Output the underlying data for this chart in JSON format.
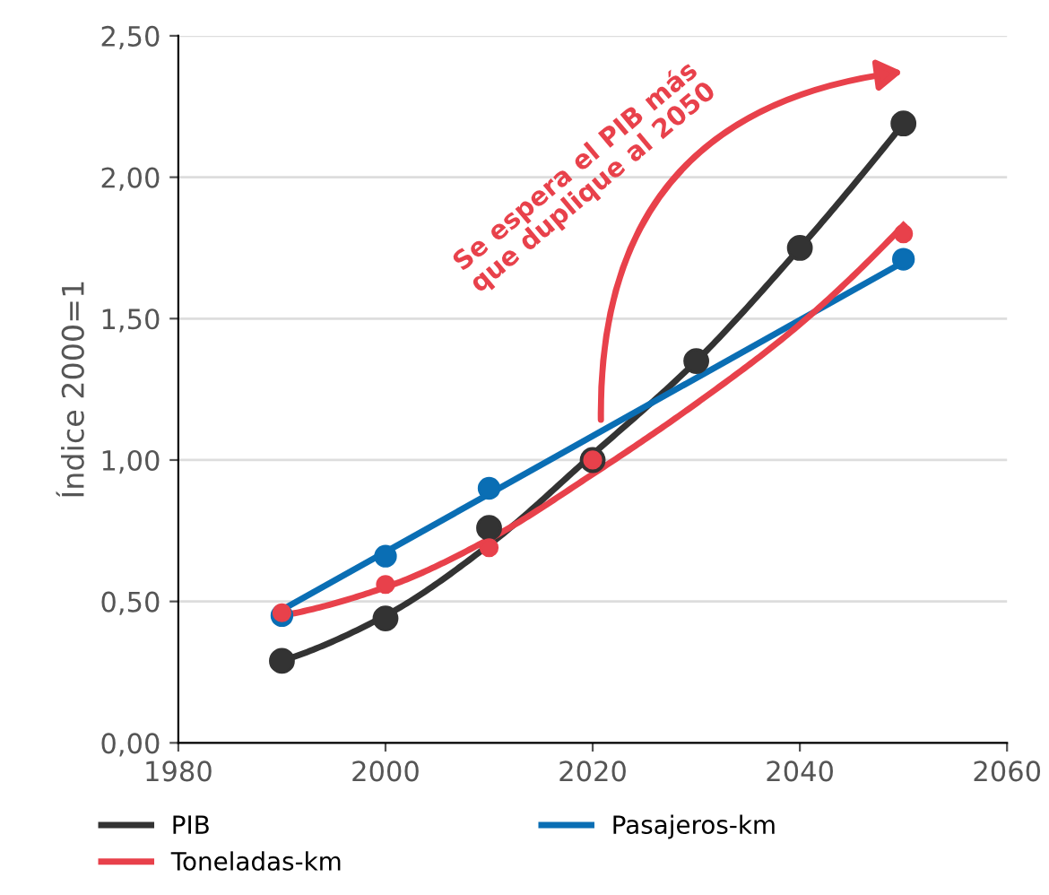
{
  "chart_data": {
    "type": "line",
    "ylabel": "Índice 2000=1",
    "xlim": [
      1980,
      2060
    ],
    "xticks": [
      1980,
      2000,
      2020,
      2040,
      2060
    ],
    "ylim": [
      0,
      2.5
    ],
    "yticks": [
      {
        "value": 0,
        "label": "0,00"
      },
      {
        "value": 0.5,
        "label": "0,50"
      },
      {
        "value": 1,
        "label": "1,00"
      },
      {
        "value": 1.5,
        "label": "1,50"
      },
      {
        "value": 2,
        "label": "2,00"
      },
      {
        "value": 2.5,
        "label": "2,50"
      }
    ],
    "grid": "y",
    "legend": "bottom",
    "annotations": [
      "Se espera el PIB más\nque duplique al 2050"
    ],
    "series": [
      {
        "type": "scatter",
        "marker": "circle",
        "color": "#333333",
        "x": [
          1990,
          2000,
          2010,
          2020,
          2030,
          2040,
          2050
        ],
        "values": [
          0.29,
          0.44,
          0.76,
          1.0,
          1.35,
          1.75,
          2.19
        ]
      },
      {
        "type": "scatter",
        "marker": "circle",
        "color": "#0a6eb4",
        "x": [
          1990,
          2000,
          2010,
          2050
        ],
        "values": [
          0.45,
          0.66,
          0.9,
          1.71
        ]
      },
      {
        "type": "scatter",
        "marker": "circle",
        "color": "#e8414b",
        "x": [
          1990,
          2000,
          2010,
          2020,
          2050
        ],
        "values": [
          0.46,
          0.56,
          0.69,
          1.0,
          1.8
        ]
      },
      {
        "name": "PIB",
        "color": "#333333",
        "x": [
          1990,
          2000,
          2010,
          2020,
          2030,
          2040,
          2050
        ],
        "values": [
          0.29,
          0.45,
          0.7,
          1.02,
          1.35,
          1.75,
          2.19
        ]
      },
      {
        "name": "Pasajeros-km",
        "color": "#0a6eb4",
        "x": [
          1990,
          2050
        ],
        "values": [
          0.47,
          1.7
        ]
      },
      {
        "name": "Toneladas-km",
        "color": "#e8414b",
        "x": [
          1990,
          2000,
          2010,
          2020,
          2030,
          2040,
          2050
        ],
        "values": [
          0.45,
          0.55,
          0.72,
          0.95,
          1.2,
          1.48,
          1.83
        ]
      }
    ]
  }
}
